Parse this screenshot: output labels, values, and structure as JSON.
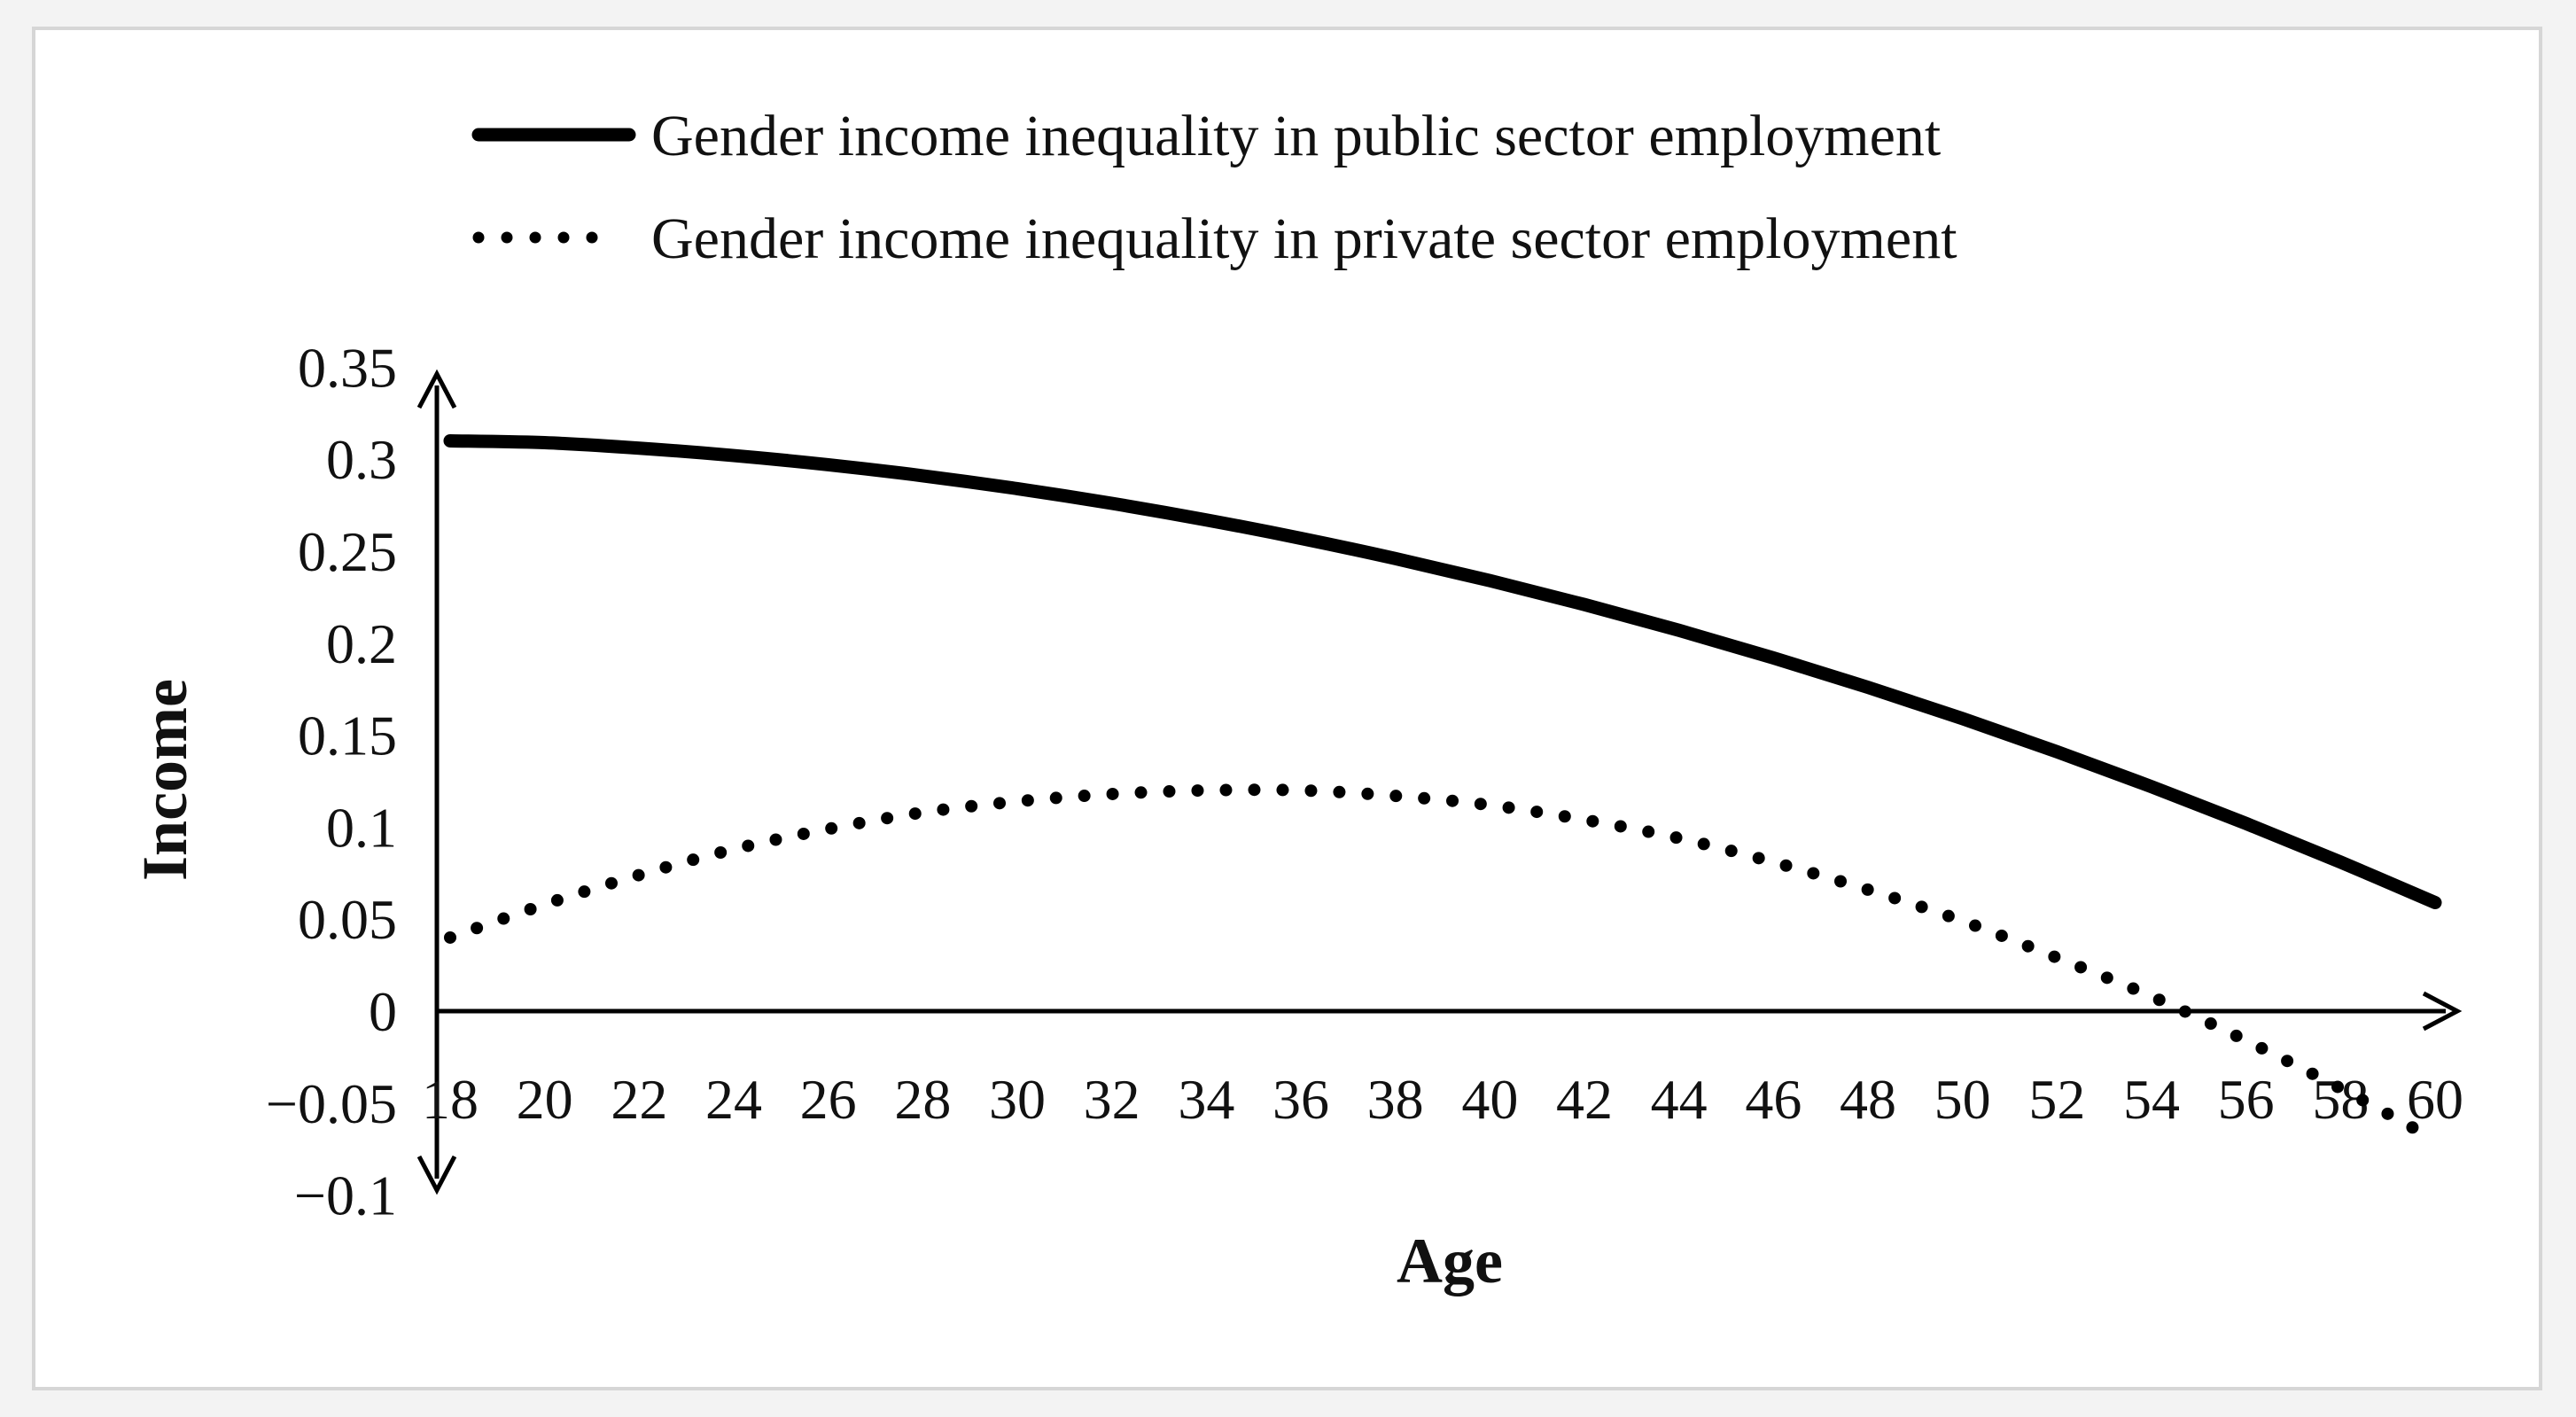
{
  "chart_data": {
    "type": "line",
    "title": "",
    "xlabel": "Age",
    "ylabel": "Income",
    "xlim": [
      18,
      60
    ],
    "ylim": [
      -0.1,
      0.35
    ],
    "x_ticks": [
      "18",
      "20",
      "22",
      "24",
      "26",
      "28",
      "30",
      "32",
      "34",
      "36",
      "38",
      "40",
      "42",
      "44",
      "46",
      "48",
      "50",
      "52",
      "54",
      "56",
      "58",
      "60"
    ],
    "y_ticks": [
      "0.35",
      "0.3",
      "0.25",
      "0.2",
      "0.15",
      "0.1",
      "0.05",
      "0",
      "−0.05",
      "−0.1"
    ],
    "grid": false,
    "legend_position": "top",
    "x": [
      18,
      20,
      22,
      24,
      26,
      28,
      30,
      32,
      34,
      36,
      38,
      40,
      42,
      44,
      46,
      48,
      50,
      52,
      54,
      56,
      58,
      60
    ],
    "series": [
      {
        "name": "Gender income inequality in public sector employment",
        "style": "solid",
        "color": "#000000",
        "values": [
          0.31,
          0.309,
          0.306,
          0.302,
          0.297,
          0.291,
          0.284,
          0.276,
          0.267,
          0.257,
          0.246,
          0.234,
          0.221,
          0.207,
          0.192,
          0.176,
          0.159,
          0.141,
          0.122,
          0.102,
          0.081,
          0.059
        ]
      },
      {
        "name": "Gender income inequality in private sector employment",
        "style": "dotted",
        "color": "#000000",
        "values": [
          0.04,
          0.058,
          0.074,
          0.088,
          0.099,
          0.108,
          0.114,
          0.118,
          0.12,
          0.12,
          0.117,
          0.112,
          0.104,
          0.094,
          0.081,
          0.066,
          0.049,
          0.029,
          0.008,
          -0.016,
          -0.042,
          -0.07
        ]
      }
    ]
  }
}
